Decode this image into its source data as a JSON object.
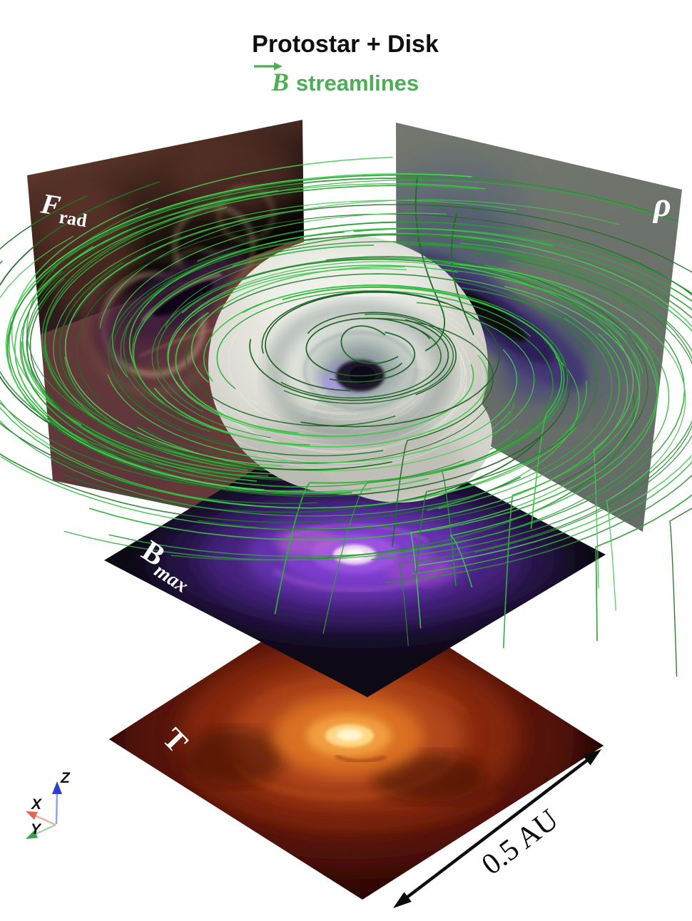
{
  "header": {
    "title": "Protostar + Disk",
    "subtitle_vector": "B",
    "subtitle_text": "streamlines",
    "accent_color": "#4DAD55"
  },
  "panels": {
    "frad": {
      "label_main": "F",
      "label_sub": "rad"
    },
    "rho": {
      "label": "ρ"
    },
    "bmax": {
      "label_main": "B",
      "label_sub": "max"
    },
    "temperature": {
      "label": "T"
    }
  },
  "scale_bar": {
    "label": "0.5 AU"
  },
  "axis_triad": {
    "x": "X",
    "y": "Y",
    "z": "Z",
    "x_color": "#E0685A",
    "y_color": "#3F9E54",
    "z_color": "#2B3FD0",
    "x_shaft": "#F0B0A4",
    "y_shaft": "#A8D4AE",
    "z_shaft": "#99A2E0"
  },
  "streamlines": {
    "seed": 11,
    "count_back": 30,
    "count_front": 58,
    "count_inner": 30,
    "count_dark": 8,
    "hue": 125
  },
  "chart_data": {
    "type": "3d-volume-visualization",
    "title": "Protostar + Disk",
    "overlay_legend": "B streamlines",
    "slice_labels": [
      "F_rad",
      "ρ",
      "B_max",
      "T"
    ],
    "scale_bar": "0.5 AU",
    "axes": [
      "X",
      "Y",
      "Z"
    ]
  }
}
